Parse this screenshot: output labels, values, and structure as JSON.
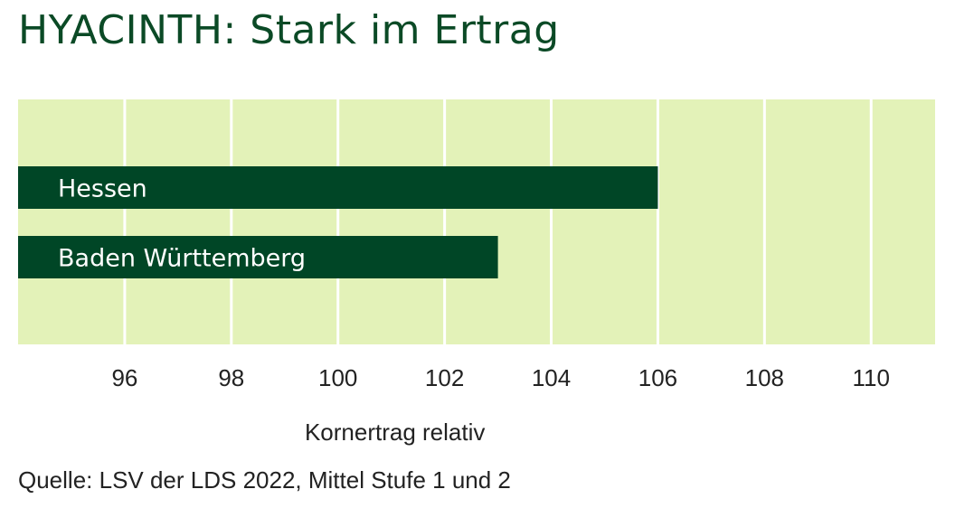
{
  "title": "HYACINTH: Stark im Ertrag",
  "source": "Quelle: LSV der LDS 2022, Mittel Stufe 1 und 2",
  "colors": {
    "title": "#0b4a26",
    "plot_background": "#e3f2b8",
    "bar": "#004626",
    "grid": "#ffffff",
    "bar_text": "#ffffff"
  },
  "chart_data": {
    "type": "bar",
    "orientation": "horizontal",
    "categories": [
      "Hessen",
      "Baden Württemberg"
    ],
    "values": [
      106,
      103
    ],
    "xlabel": "Kornertrag relativ",
    "ylabel": "",
    "xlim": [
      94,
      111.2
    ],
    "xticks": [
      96,
      98,
      100,
      102,
      104,
      106,
      108,
      110
    ],
    "xtick_labels": [
      "96",
      "98",
      "100",
      "102",
      "104",
      "106",
      "108",
      "110"
    ],
    "grid": "vertical",
    "legend": "none"
  }
}
